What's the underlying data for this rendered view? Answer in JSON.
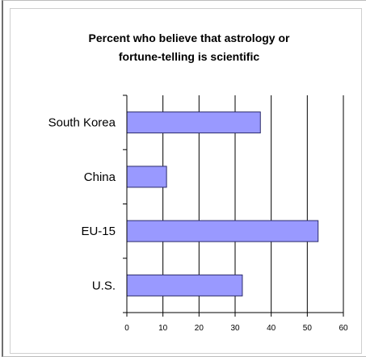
{
  "chart_data": {
    "type": "bar",
    "orientation": "horizontal",
    "title_lines": [
      "Percent who believe that astrology or",
      "fortune-telling is scientific"
    ],
    "categories": [
      "South Korea",
      "China",
      "EU-15",
      "U.S."
    ],
    "values": [
      37,
      11,
      53,
      32
    ],
    "xlim": [
      0,
      60
    ],
    "x_ticks": [
      "0",
      "10",
      "20",
      "30",
      "40",
      "50",
      "60"
    ],
    "grid": true,
    "legend": "none",
    "colors": {
      "bar_fill": "#9999ff",
      "bar_stroke": "#2b2b6b",
      "grid": "#000000",
      "axis": "#000000"
    }
  }
}
